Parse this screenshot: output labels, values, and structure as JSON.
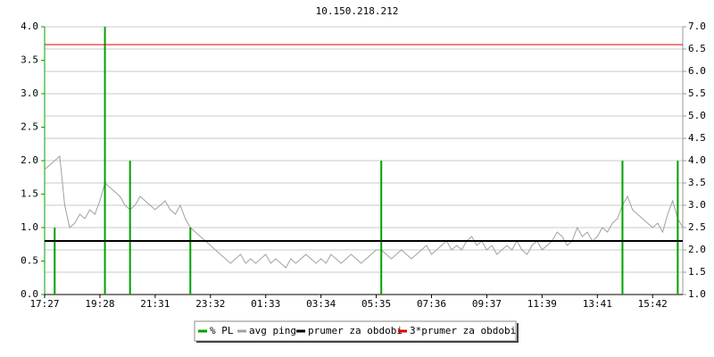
{
  "chart_data": {
    "type": "line",
    "title": "10.150.218.212",
    "categories": [
      "17:27",
      null,
      null,
      null,
      null,
      null,
      null,
      null,
      null,
      null,
      null,
      "19:28",
      null,
      null,
      null,
      null,
      null,
      null,
      null,
      null,
      null,
      null,
      "21:31",
      null,
      null,
      null,
      null,
      null,
      null,
      null,
      null,
      null,
      null,
      "23:32",
      null,
      null,
      null,
      null,
      null,
      null,
      null,
      null,
      null,
      null,
      "01:33",
      null,
      null,
      null,
      null,
      null,
      null,
      null,
      null,
      null,
      null,
      "03:34",
      null,
      null,
      null,
      null,
      null,
      null,
      null,
      null,
      null,
      null,
      "05:35",
      null,
      null,
      null,
      null,
      null,
      null,
      null,
      null,
      null,
      null,
      "07:36",
      null,
      null,
      null,
      null,
      null,
      null,
      null,
      null,
      null,
      null,
      "09:37",
      null,
      null,
      null,
      null,
      null,
      null,
      null,
      null,
      null,
      null,
      "11:39",
      null,
      null,
      null,
      null,
      null,
      null,
      null,
      null,
      null,
      null,
      "13:41",
      null,
      null,
      null,
      null,
      null,
      null,
      null,
      null,
      null,
      null,
      "15:42",
      null,
      null,
      null,
      null,
      null,
      null
    ],
    "ylim": [
      0,
      4
    ],
    "yticks": [
      {
        "value": 0,
        "label": "0.0"
      },
      {
        "value": 0.5,
        "label": "0.5"
      },
      {
        "value": 1,
        "label": "1.0"
      },
      {
        "value": 1.5,
        "label": "1.5"
      },
      {
        "value": 2,
        "label": "2.0"
      },
      {
        "value": 2.5,
        "label": "2.5"
      },
      {
        "value": 3,
        "label": "3.0"
      },
      {
        "value": 3.5,
        "label": "3.5"
      },
      {
        "value": 4,
        "label": "4.0"
      }
    ],
    "y2lim": [
      1,
      7
    ],
    "y2ticks": [
      {
        "value": 1,
        "label": "1.0"
      },
      {
        "value": 1.5,
        "label": "1.5"
      },
      {
        "value": 2,
        "label": "2.0"
      },
      {
        "value": 2.5,
        "label": "2.5"
      },
      {
        "value": 3,
        "label": "3.0"
      },
      {
        "value": 3.5,
        "label": "3.5"
      },
      {
        "value": 4,
        "label": "4.0"
      },
      {
        "value": 4.5,
        "label": "4.5"
      },
      {
        "value": 5,
        "label": "5.0"
      },
      {
        "value": 5.5,
        "label": "5.5"
      },
      {
        "value": 6,
        "label": "6.0"
      },
      {
        "value": 6.5,
        "label": "6.5"
      },
      {
        "value": 7,
        "label": "7.0"
      }
    ],
    "grid": true,
    "series": [
      {
        "name": "% PL",
        "color": "#00a000",
        "axis": "y",
        "style": "spikes",
        "values": [
          0,
          0,
          1,
          0,
          0,
          0,
          0,
          0,
          0,
          0,
          0,
          0,
          4,
          0,
          0,
          0,
          0,
          2,
          0,
          0,
          0,
          0,
          0,
          0,
          0,
          0,
          0,
          0,
          0,
          1,
          0,
          0,
          0,
          0,
          0,
          0,
          0,
          0,
          0,
          0,
          0,
          0,
          0,
          0,
          0,
          0,
          0,
          0,
          0,
          0,
          0,
          0,
          0,
          0,
          0,
          0,
          0,
          0,
          0,
          0,
          0,
          0,
          0,
          0,
          0,
          0,
          0,
          2,
          0,
          0,
          0,
          0,
          0,
          0,
          0,
          0,
          0,
          0,
          0,
          0,
          0,
          0,
          0,
          0,
          0,
          0,
          0,
          0,
          0,
          0,
          0,
          0,
          0,
          0,
          0,
          0,
          0,
          0,
          0,
          0,
          0,
          0,
          0,
          0,
          0,
          0,
          0,
          0,
          0,
          0,
          0,
          0,
          0,
          0,
          0,
          2,
          0,
          0,
          0,
          0,
          0,
          0,
          0,
          0,
          0,
          0,
          2,
          0
        ]
      },
      {
        "name": "avg ping",
        "color": "#a0a0a0",
        "axis": "y2",
        "style": "line",
        "values": [
          3.8,
          3.9,
          4.0,
          4.1,
          3.0,
          2.5,
          2.6,
          2.8,
          2.7,
          2.9,
          2.8,
          3.1,
          3.5,
          3.4,
          3.3,
          3.2,
          3.0,
          2.9,
          3.0,
          3.2,
          3.1,
          3.0,
          2.9,
          3.0,
          3.1,
          2.9,
          2.8,
          3.0,
          2.7,
          2.5,
          2.4,
          2.3,
          2.2,
          2.1,
          2.0,
          1.9,
          1.8,
          1.7,
          1.8,
          1.9,
          1.7,
          1.8,
          1.7,
          1.8,
          1.9,
          1.7,
          1.8,
          1.7,
          1.6,
          1.8,
          1.7,
          1.8,
          1.9,
          1.8,
          1.7,
          1.8,
          1.7,
          1.9,
          1.8,
          1.7,
          1.8,
          1.9,
          1.8,
          1.7,
          1.8,
          1.9,
          2.0,
          2.0,
          1.9,
          1.8,
          1.9,
          2.0,
          1.9,
          1.8,
          1.9,
          2.0,
          2.1,
          1.9,
          2.0,
          2.1,
          2.2,
          2.0,
          2.1,
          2.0,
          2.2,
          2.3,
          2.1,
          2.2,
          2.0,
          2.1,
          1.9,
          2.0,
          2.1,
          2.0,
          2.2,
          2.0,
          1.9,
          2.1,
          2.2,
          2.0,
          2.1,
          2.2,
          2.4,
          2.3,
          2.1,
          2.2,
          2.5,
          2.3,
          2.4,
          2.2,
          2.3,
          2.5,
          2.4,
          2.6,
          2.7,
          3.0,
          3.2,
          2.9,
          2.8,
          2.7,
          2.6,
          2.5,
          2.6,
          2.4,
          2.8,
          3.1,
          2.7,
          2.5
        ]
      },
      {
        "name": "prumer za obdobi",
        "color": "#000000",
        "axis": "y2",
        "style": "hline",
        "value": 2.2
      },
      {
        "name": "3*prumer za obdobi",
        "color": "#e00000",
        "axis": "y2",
        "style": "hline",
        "value": 6.6
      }
    ]
  }
}
